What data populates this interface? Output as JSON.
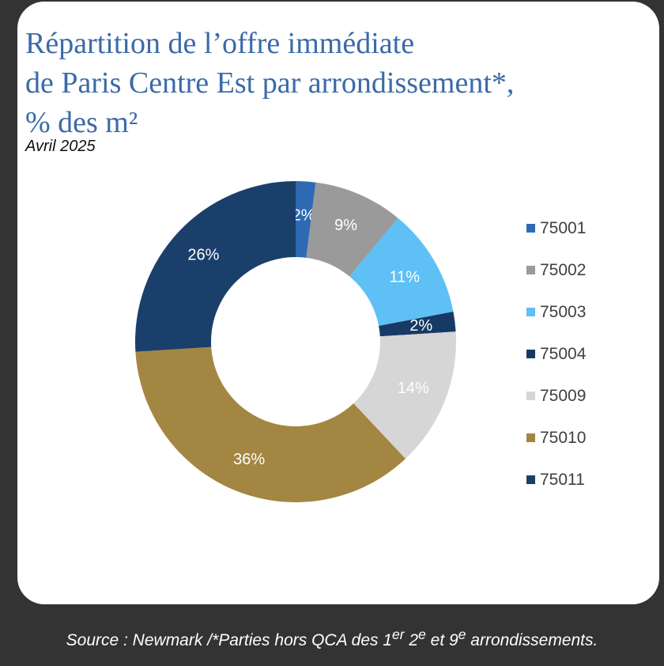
{
  "title_lines": [
    "Répartition de l’offre immédiate",
    "de Paris Centre Est par arrondissement*,",
    "% des m²"
  ],
  "subtitle": "Avril 2025",
  "footer": {
    "text_a": "Source : Newmark /*Parties hors QCA des 1",
    "sup_1": "er",
    "text_b": " 2",
    "sup_2": "e",
    "text_c": " et 9",
    "sup_3": "e",
    "text_d": " arrondissements."
  },
  "chart_data": {
    "type": "pie",
    "variant": "donut",
    "title": "Répartition de l’offre immédiate de Paris Centre Est par arrondissement*, % des m²",
    "legend_position": "right",
    "categories": [
      "75001",
      "75002",
      "75003",
      "75004",
      "75009",
      "75010",
      "75011"
    ],
    "values": [
      2,
      9,
      11,
      2,
      14,
      36,
      26
    ],
    "labels": [
      "2%",
      "9%",
      "11%",
      "2%",
      "14%",
      "36%",
      "26%"
    ],
    "colors": [
      "#2e6ab3",
      "#9a9a9a",
      "#5ec0f5",
      "#163a63",
      "#d6d6d6",
      "#a38641",
      "#1b3f6b"
    ],
    "label_colors": [
      "#ffffff",
      "#ffffff",
      "#ffffff",
      "#ffffff",
      "#ffffff",
      "#ffffff",
      "#ffffff"
    ]
  }
}
